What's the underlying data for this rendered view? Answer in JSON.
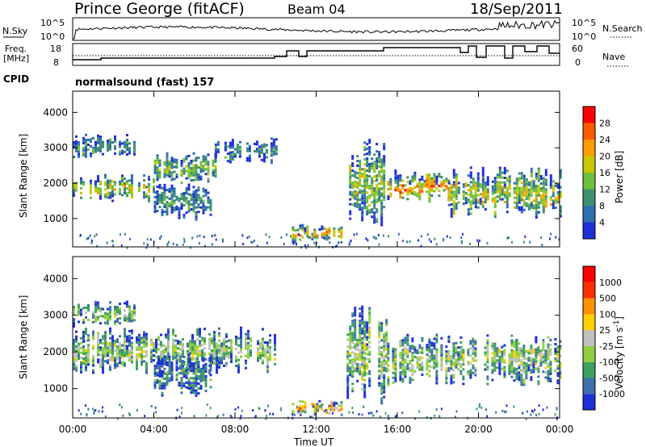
{
  "header": {
    "station": "Prince George (fitACF)",
    "beam": "Beam 04",
    "date": "18/Sep/2011"
  },
  "noise_panel": {
    "left_label": "N.Sky",
    "right_label": "N.Search",
    "left_ticks": [
      "10^5",
      "10^0"
    ],
    "right_ticks": [
      "10^5",
      "10^0"
    ]
  },
  "freq_panel": {
    "left_label_line1": "Freq.",
    "left_label_line2": "[MHz]",
    "right_label": "Nave",
    "left_ticks": [
      "18",
      "8"
    ],
    "right_ticks": [
      "60",
      "0"
    ]
  },
  "cpid": {
    "label": "CPID",
    "value": "normalsound (fast) 157"
  },
  "x_axis": {
    "label": "Time UT",
    "ticks": [
      "00:00",
      "04:00",
      "08:00",
      "12:00",
      "16:00",
      "20:00",
      "00:00"
    ]
  },
  "colors": {
    "scale_power": [
      "#1f2fd8",
      "#2f6fb0",
      "#3f8f6f",
      "#6fbf3f",
      "#c8c800",
      "#ff9a00",
      "#ff5a00",
      "#ff0000"
    ],
    "scale_velocity": [
      "#1f2fd8",
      "#3f6fa8",
      "#3f9f5f",
      "#8fcf3f",
      "#c0c0c0",
      "#ffcf00",
      "#ff9000",
      "#ff3000",
      "#ff0000"
    ]
  },
  "chart_data": [
    {
      "type": "heatmap",
      "name": "power",
      "title": "",
      "xlabel": "",
      "ylabel": "Slant Range [km]",
      "y_ticks": [
        "4000",
        "3000",
        "2000",
        "1000"
      ],
      "ylim": [
        200,
        4600
      ],
      "xlim": [
        0,
        24
      ],
      "colorbar": {
        "label": "Power [dB]",
        "ticks": [
          "28",
          "24",
          "20",
          "16",
          "12",
          "8",
          "4"
        ]
      },
      "bands": [
        {
          "x0": 0.0,
          "x1": 4.0,
          "y0": 1500,
          "y1": 2300,
          "level": 0.6
        },
        {
          "x0": 4.0,
          "x1": 7.0,
          "y0": 2000,
          "y1": 2900,
          "level": 0.5
        },
        {
          "x0": 7.0,
          "x1": 10.0,
          "y0": 2600,
          "y1": 3300,
          "level": 0.3
        },
        {
          "x0": 0.0,
          "x1": 3.0,
          "y0": 2700,
          "y1": 3400,
          "level": 0.35
        },
        {
          "x0": 4.0,
          "x1": 6.8,
          "y0": 1000,
          "y1": 2000,
          "level": 0.35
        },
        {
          "x0": 10.8,
          "x1": 13.2,
          "y0": 350,
          "y1": 850,
          "level": 0.75
        },
        {
          "x0": 13.5,
          "x1": 15.5,
          "y0": 600,
          "y1": 3300,
          "level": 0.55
        },
        {
          "x0": 15.5,
          "x1": 18.5,
          "y0": 1500,
          "y1": 2400,
          "level": 0.8
        },
        {
          "x0": 18.5,
          "x1": 24.0,
          "y0": 1000,
          "y1": 2500,
          "level": 0.6
        }
      ]
    },
    {
      "type": "heatmap",
      "name": "velocity",
      "title": "",
      "xlabel": "",
      "ylabel": "Slant Range [km]",
      "y_ticks": [
        "4000",
        "3000",
        "2000",
        "1000"
      ],
      "ylim": [
        200,
        4600
      ],
      "xlim": [
        0,
        24
      ],
      "colorbar": {
        "label": "Velocity [m s^-1]",
        "ticks": [
          "1000",
          "500",
          "100",
          "25",
          "-25",
          "-100",
          "-500",
          "-1000"
        ]
      },
      "bands": [
        {
          "x0": 0.0,
          "x1": 10.0,
          "y0": 1400,
          "y1": 2700,
          "level": 0.5
        },
        {
          "x0": 0.0,
          "x1": 3.0,
          "y0": 2700,
          "y1": 3400,
          "level": 0.45
        },
        {
          "x0": 4.0,
          "x1": 6.8,
          "y0": 800,
          "y1": 2000,
          "level": 0.25
        },
        {
          "x0": 10.8,
          "x1": 13.2,
          "y0": 300,
          "y1": 700,
          "level": 0.75
        },
        {
          "x0": 13.5,
          "x1": 15.5,
          "y0": 600,
          "y1": 3300,
          "level": 0.5
        },
        {
          "x0": 15.5,
          "x1": 24.0,
          "y0": 1100,
          "y1": 2500,
          "level": 0.5
        }
      ]
    }
  ]
}
